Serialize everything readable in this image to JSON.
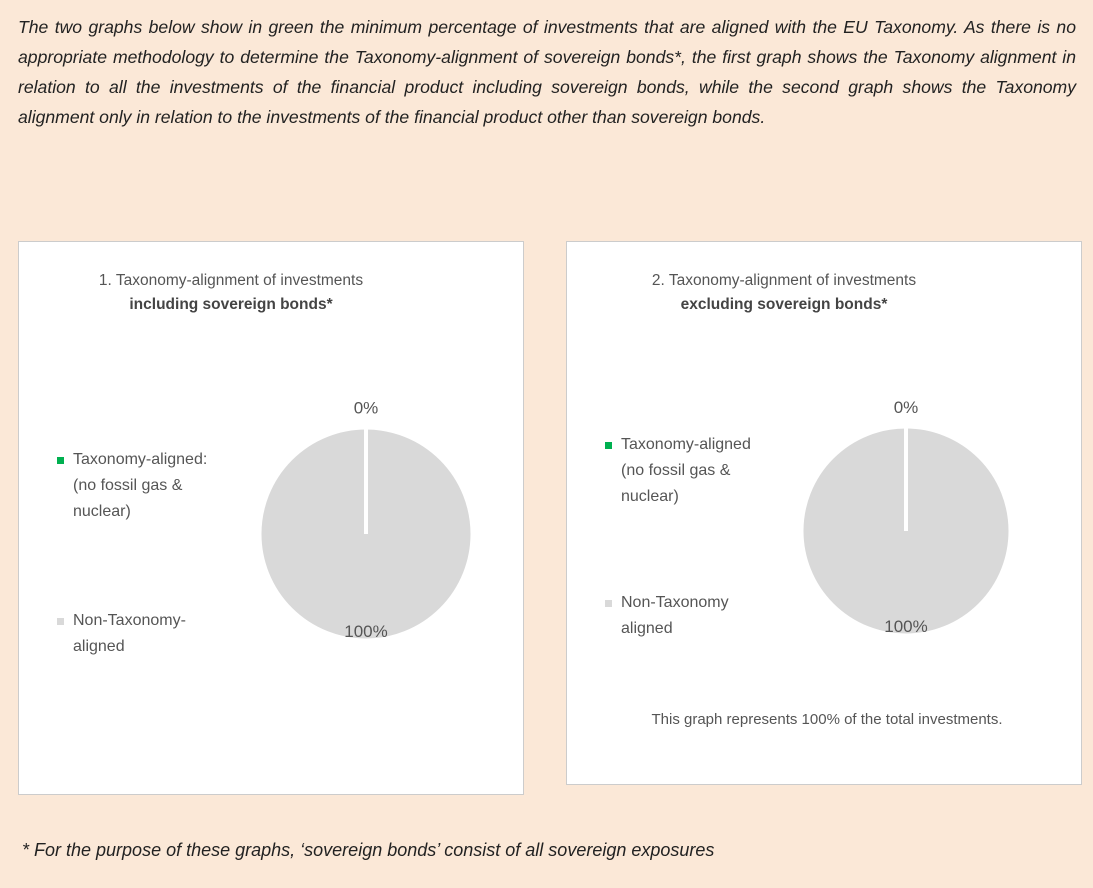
{
  "intro": "The two graphs below show in green the minimum percentage of investments that are aligned with the EU Taxonomy. As there is no appropriate methodology to determine the Taxonomy-alignment of sovereign bonds*, the first graph shows the Taxonomy alignment in relation to all the investments of the financial product including sovereign bonds, while the second graph shows the Taxonomy alignment only in relation to the investments of the financial product other than sovereign bonds.",
  "footnote": "* For the purpose of these graphs, ‘sovereign bonds’ consist of all sovereign exposures",
  "chart_data": [
    {
      "type": "pie",
      "title": "1. Taxonomy-alignment of investments",
      "subtitle": "including sovereign bonds*",
      "categories": [
        "Taxonomy-aligned: (no fossil gas & nuclear)",
        "Non-Taxonomy-aligned"
      ],
      "values": [
        0,
        100
      ],
      "value_labels": [
        "0%",
        "100%"
      ],
      "colors": [
        "#00b050",
        "#d9d9d9"
      ]
    },
    {
      "type": "pie",
      "title": "2. Taxonomy-alignment of investments",
      "subtitle": "excluding sovereign bonds*",
      "categories": [
        "Taxonomy-aligned (no fossil gas & nuclear)",
        "Non-Taxonomy aligned"
      ],
      "values": [
        0,
        100
      ],
      "value_labels": [
        "0%",
        "100%"
      ],
      "colors": [
        "#00b050",
        "#d9d9d9"
      ],
      "annotation": "This graph represents 100% of the total investments."
    }
  ]
}
